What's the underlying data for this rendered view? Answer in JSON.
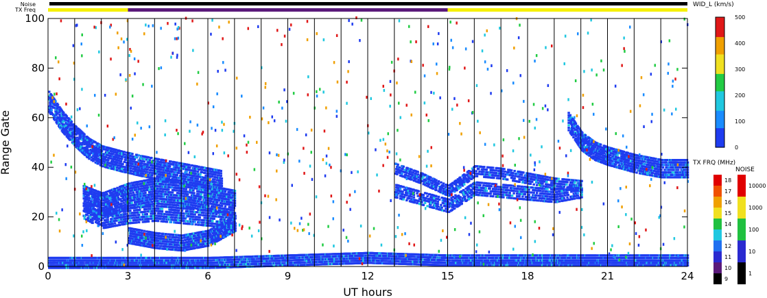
{
  "chart_data": {
    "type": "heatmap",
    "xlabel": "UT hours",
    "ylabel": "Range Gate",
    "xlim": [
      0,
      24
    ],
    "ylim": [
      0,
      100
    ],
    "xticks": [
      0,
      3,
      6,
      9,
      12,
      15,
      18,
      21,
      24
    ],
    "yticks": [
      0,
      20,
      40,
      60,
      80,
      100
    ],
    "scan_lines_every_hours": 1,
    "top_bar_labels": {
      "noise": "Noise",
      "txfreq": "TX Freq"
    },
    "txfreq_segments": [
      {
        "from": 0,
        "to": 3,
        "color": "#f5f000"
      },
      {
        "from": 3,
        "to": 15,
        "color": "#5a1a7a"
      },
      {
        "from": 15,
        "to": 24,
        "color": "#f5f000"
      }
    ],
    "bands": [
      {
        "name": "ground-scatter",
        "color": "#1f3cf0",
        "points": [
          [
            0,
            1
          ],
          [
            3,
            1
          ],
          [
            6,
            1
          ],
          [
            9,
            2
          ],
          [
            12,
            3
          ],
          [
            15,
            2
          ],
          [
            18,
            2
          ],
          [
            21,
            2
          ],
          [
            24,
            2
          ]
        ],
        "width": 4,
        "density": 0.95
      },
      {
        "name": "early-descending",
        "color": "#1f3cf0",
        "points": [
          [
            0,
            66
          ],
          [
            0.5,
            58
          ],
          [
            1,
            52
          ],
          [
            1.5,
            47
          ],
          [
            2,
            44
          ],
          [
            2.7,
            42
          ],
          [
            3.5,
            40
          ],
          [
            4.5,
            38
          ],
          [
            5.5,
            36
          ],
          [
            6.5,
            34
          ]
        ],
        "width": 8,
        "density": 0.7
      },
      {
        "name": "band-25",
        "color": "#1f3cf0",
        "points": [
          [
            1.3,
            27
          ],
          [
            2,
            24
          ],
          [
            3,
            28
          ],
          [
            4,
            30
          ],
          [
            5,
            29
          ],
          [
            6,
            27
          ],
          [
            7,
            25
          ]
        ],
        "width": 10,
        "density": 0.75
      },
      {
        "name": "band-20",
        "color": "#1f3cf0",
        "points": [
          [
            1.3,
            22
          ],
          [
            2,
            18
          ],
          [
            3,
            20
          ],
          [
            4,
            21
          ],
          [
            5,
            20
          ],
          [
            6,
            19
          ],
          [
            7,
            18
          ]
        ],
        "width": 6,
        "density": 0.55
      },
      {
        "name": "band-10",
        "color": "#1f3cf0",
        "points": [
          [
            3,
            12
          ],
          [
            4,
            10
          ],
          [
            5,
            9
          ],
          [
            6,
            11
          ],
          [
            7,
            17
          ]
        ],
        "width": 6,
        "density": 0.8
      },
      {
        "name": "afternoon-38",
        "color": "#1f3cf0",
        "points": [
          [
            13,
            39
          ],
          [
            14,
            35
          ],
          [
            15,
            30
          ],
          [
            16,
            38
          ],
          [
            17,
            37
          ],
          [
            18,
            35
          ],
          [
            19,
            33
          ],
          [
            20,
            32
          ]
        ],
        "width": 4,
        "density": 0.6
      },
      {
        "name": "afternoon-28",
        "color": "#1f3cf0",
        "points": [
          [
            13,
            30
          ],
          [
            14,
            27
          ],
          [
            15,
            24
          ],
          [
            16,
            31
          ],
          [
            17,
            30
          ],
          [
            18,
            29
          ],
          [
            19,
            28
          ],
          [
            20,
            30
          ]
        ],
        "width": 5,
        "density": 0.55
      },
      {
        "name": "evening-descending",
        "color": "#1f3cf0",
        "points": [
          [
            19.5,
            58
          ],
          [
            20,
            50
          ],
          [
            20.5,
            46
          ],
          [
            21,
            44
          ],
          [
            22,
            41
          ],
          [
            23,
            39
          ],
          [
            24,
            39
          ]
        ],
        "width": 7,
        "density": 0.75
      }
    ],
    "colorbars": {
      "width": {
        "title": "WID_L (km/s)",
        "ticks": [
          0,
          100,
          200,
          300,
          400,
          500
        ]
      },
      "txfreq": {
        "title": "TX FRQ (MHz)",
        "ticks": [
          9,
          10,
          11,
          12,
          13,
          14,
          15,
          16,
          17,
          18
        ],
        "colors": [
          "#000000",
          "#5a1a7a",
          "#2a2ad0",
          "#2070f0",
          "#20c8e0",
          "#20c040",
          "#f0e020",
          "#f0a000",
          "#f05000",
          "#e00000"
        ]
      },
      "noise": {
        "title": "NOISE",
        "ticks": [
          1,
          10,
          100,
          1000,
          10000
        ],
        "colors": [
          "#000000",
          "#2a2ad0",
          "#20c040",
          "#f0e020",
          "#e00000"
        ]
      }
    },
    "noise_colors": [
      "#1f3cf0",
      "#1a8cff",
      "#20c8e0",
      "#22cc44",
      "#e01818",
      "#f0a000"
    ],
    "colors": {
      "main_blue": "#1f3cf0",
      "cyan": "#20c8e0",
      "green": "#22cc44",
      "red": "#e01818",
      "orange": "#f0a000",
      "yellow": "#f5f000"
    }
  }
}
